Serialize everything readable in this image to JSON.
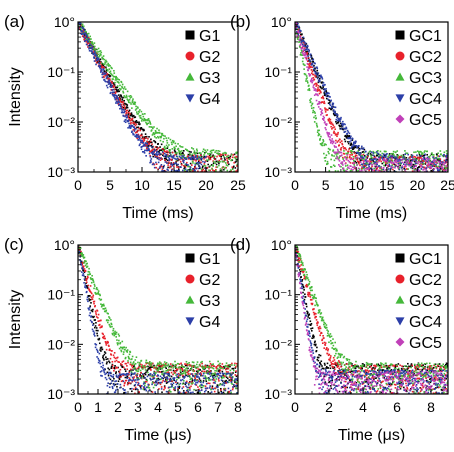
{
  "chart_data": [
    {
      "panel_label": "(a)",
      "type": "scatter",
      "xlabel": "Time (ms)",
      "ylabel": "Intensity",
      "xlim": [
        0,
        25
      ],
      "ylim": [
        0.001,
        1
      ],
      "yscale": "log",
      "xticks": [
        "0",
        "5",
        "10",
        "15",
        "20",
        "25"
      ],
      "yticks": [
        "10°",
        "10⁻¹",
        "10⁻²",
        "10⁻³"
      ],
      "legend_position": "top-right",
      "series": [
        {
          "name": "G1",
          "color": "#000000",
          "marker": "square",
          "decay_per_unit": 0.2303,
          "x_end": 25,
          "noise_floor": 0.0013
        },
        {
          "name": "G2",
          "color": "#e8212b",
          "marker": "circle",
          "decay_per_unit": 0.245,
          "x_end": 25,
          "noise_floor": 0.0012
        },
        {
          "name": "G3",
          "color": "#45b83a",
          "marker": "triangle-up",
          "decay_per_unit": 0.192,
          "x_end": 25,
          "noise_floor": 0.0014
        },
        {
          "name": "G4",
          "color": "#2c3fa8",
          "marker": "triangle-down",
          "decay_per_unit": 0.26,
          "x_end": 20,
          "noise_floor": 0.0011
        }
      ]
    },
    {
      "panel_label": "(b)",
      "type": "scatter",
      "xlabel": "Time (ms)",
      "ylabel": "",
      "xlim": [
        0,
        25
      ],
      "ylim": [
        0.001,
        1
      ],
      "yscale": "log",
      "xticks": [
        "0",
        "5",
        "10",
        "15",
        "20",
        "25"
      ],
      "yticks": [
        "10°",
        "10⁻¹",
        "10⁻²",
        "10⁻³"
      ],
      "legend_position": "top-right",
      "series": [
        {
          "name": "GC1",
          "color": "#000000",
          "marker": "square",
          "decay_per_unit": 0.29,
          "x_end": 25,
          "noise_floor": 0.0012
        },
        {
          "name": "GC2",
          "color": "#e8212b",
          "marker": "circle",
          "decay_per_unit": 0.35,
          "x_end": 25,
          "noise_floor": 0.0011
        },
        {
          "name": "GC3",
          "color": "#45b83a",
          "marker": "triangle-up",
          "decay_per_unit": 0.6,
          "x_end": 25,
          "noise_floor": 0.0014
        },
        {
          "name": "GC4",
          "color": "#2c3fa8",
          "marker": "triangle-down",
          "decay_per_unit": 0.275,
          "x_end": 25,
          "noise_floor": 0.0012
        },
        {
          "name": "GC5",
          "color": "#c040b8",
          "marker": "diamond",
          "decay_per_unit": 0.42,
          "x_end": 25,
          "noise_floor": 0.001
        }
      ]
    },
    {
      "panel_label": "(c)",
      "type": "scatter",
      "xlabel": "Time (μs)",
      "ylabel": "Intensity",
      "xlim": [
        0,
        8
      ],
      "ylim": [
        0.001,
        1
      ],
      "yscale": "log",
      "xticks": [
        "0",
        "1",
        "2",
        "3",
        "4",
        "5",
        "6",
        "7",
        "8"
      ],
      "yticks": [
        "10°",
        "10⁻¹",
        "10⁻²",
        "10⁻³"
      ],
      "legend_position": "top-right",
      "series": [
        {
          "name": "G1",
          "color": "#000000",
          "marker": "square",
          "decay_per_unit": 1.9,
          "x_end": 8,
          "noise_floor": 0.002
        },
        {
          "name": "G2",
          "color": "#e8212b",
          "marker": "circle",
          "decay_per_unit": 1.45,
          "x_end": 8,
          "noise_floor": 0.0022
        },
        {
          "name": "G3",
          "color": "#45b83a",
          "marker": "triangle-up",
          "decay_per_unit": 1.0,
          "x_end": 8,
          "noise_floor": 0.0024
        },
        {
          "name": "G4",
          "color": "#2c3fa8",
          "marker": "triangle-down",
          "decay_per_unit": 2.3,
          "x_end": 8,
          "noise_floor": 0.0014
        }
      ]
    },
    {
      "panel_label": "(d)",
      "type": "scatter",
      "xlabel": "Time (μs)",
      "ylabel": "",
      "xlim": [
        0,
        9
      ],
      "ylim": [
        0.001,
        1
      ],
      "yscale": "log",
      "xticks": [
        "0",
        "2",
        "4",
        "6",
        "8"
      ],
      "yticks": [
        "10°",
        "10⁻¹",
        "10⁻²",
        "10⁻³"
      ],
      "legend_position": "top-right",
      "series": [
        {
          "name": "GC1",
          "color": "#000000",
          "marker": "square",
          "decay_per_unit": 1.8,
          "x_end": 9,
          "noise_floor": 0.0022
        },
        {
          "name": "GC2",
          "color": "#e8212b",
          "marker": "circle",
          "decay_per_unit": 1.2,
          "x_end": 9,
          "noise_floor": 0.002
        },
        {
          "name": "GC3",
          "color": "#45b83a",
          "marker": "triangle-up",
          "decay_per_unit": 0.95,
          "x_end": 9,
          "noise_floor": 0.0022
        },
        {
          "name": "GC4",
          "color": "#2c3fa8",
          "marker": "triangle-down",
          "decay_per_unit": 2.2,
          "x_end": 9,
          "noise_floor": 0.0016
        },
        {
          "name": "GC5",
          "color": "#c040b8",
          "marker": "diamond",
          "decay_per_unit": 2.5,
          "x_end": 9,
          "noise_floor": 0.0015
        }
      ]
    }
  ]
}
